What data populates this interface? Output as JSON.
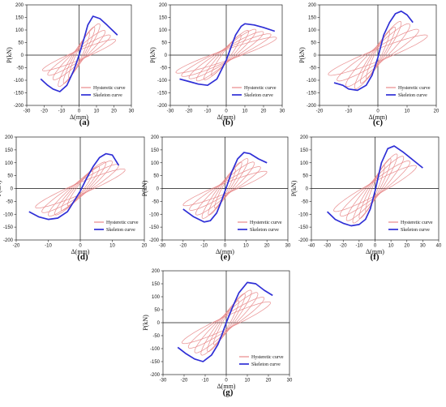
{
  "chart_data": [
    {
      "type": "line",
      "panel_label": "(a)",
      "xlabel": "Δ(mm)",
      "ylabel": "P(kN)",
      "xlim": [
        -30,
        30
      ],
      "ylim": [
        -200,
        200
      ],
      "xticks": [
        -30,
        -20,
        -10,
        0,
        10,
        20,
        30
      ],
      "yticks": [
        -200,
        -150,
        -100,
        -50,
        0,
        50,
        100,
        150,
        200
      ],
      "legend_position": "bottom-right",
      "series": [
        {
          "name": "Hysteretic curve",
          "color": "#e8888a",
          "cycle_amplitudes": [
            6,
            9,
            12,
            15,
            18,
            21
          ],
          "peak_force": [
            100,
            125,
            140,
            110,
            90,
            70
          ]
        },
        {
          "name": "Skeleton curve",
          "color": "#2f2fd6",
          "x": [
            -22,
            -18,
            -15,
            -11,
            -7,
            -3,
            0,
            3,
            5,
            8,
            12,
            16,
            19,
            22
          ],
          "y": [
            -95,
            -120,
            -135,
            -145,
            -120,
            -60,
            0,
            70,
            120,
            155,
            145,
            120,
            100,
            80
          ]
        }
      ]
    },
    {
      "type": "line",
      "panel_label": "(b)",
      "xlabel": "Δ(mm)",
      "ylabel": "P(kN)",
      "xlim": [
        -30,
        30
      ],
      "ylim": [
        -200,
        200
      ],
      "xticks": [
        -30,
        -20,
        -10,
        0,
        10,
        20,
        30
      ],
      "yticks": [
        -200,
        -150,
        -100,
        -50,
        0,
        50,
        100,
        150,
        200
      ],
      "legend_position": "bottom-right",
      "series": [
        {
          "name": "Hysteretic curve",
          "color": "#e8888a",
          "cycle_amplitudes": [
            8,
            12,
            16,
            20,
            24,
            27
          ],
          "peak_force": [
            90,
            110,
            115,
            105,
            95,
            80
          ]
        },
        {
          "name": "Skeleton curve",
          "color": "#2f2fd6",
          "x": [
            -25,
            -20,
            -15,
            -10,
            -5,
            0,
            5,
            8,
            10,
            15,
            20,
            26
          ],
          "y": [
            -95,
            -105,
            -115,
            -120,
            -95,
            -20,
            80,
            115,
            125,
            120,
            110,
            95
          ]
        }
      ]
    },
    {
      "type": "line",
      "panel_label": "(c)",
      "xlabel": "Δ(mm)",
      "ylabel": "P(kN)",
      "xlim": [
        -20,
        20
      ],
      "ylim": [
        -200,
        200
      ],
      "xticks": [
        -20,
        -10,
        0,
        10,
        20
      ],
      "yticks": [
        -200,
        -150,
        -100,
        -50,
        0,
        50,
        100,
        150,
        200
      ],
      "legend_position": "bottom-right",
      "series": [
        {
          "name": "Hysteretic curve",
          "color": "#e8888a",
          "cycle_amplitudes": [
            4,
            6,
            8,
            11,
            14,
            17
          ],
          "peak_force": [
            105,
            125,
            150,
            140,
            115,
            90
          ]
        },
        {
          "name": "Skeleton curve",
          "color": "#2f2fd6",
          "x": [
            -15,
            -12,
            -10,
            -7,
            -4,
            -2,
            0,
            2,
            4,
            6,
            8,
            10,
            12
          ],
          "y": [
            -110,
            -120,
            -135,
            -140,
            -120,
            -80,
            -10,
            80,
            130,
            165,
            175,
            160,
            130
          ]
        }
      ]
    },
    {
      "type": "line",
      "panel_label": "(d)",
      "xlabel": "Δ(mm)",
      "ylabel": "P(kN)",
      "xlim": [
        -20,
        20
      ],
      "ylim": [
        -200,
        200
      ],
      "xticks": [
        -20,
        -10,
        0,
        10,
        20
      ],
      "yticks": [
        -200,
        -150,
        -100,
        -50,
        0,
        50,
        100,
        150,
        200
      ],
      "legend_position": "bottom-right",
      "series": [
        {
          "name": "Hysteretic curve",
          "color": "#e8888a",
          "cycle_amplitudes": [
            4,
            6,
            8,
            10,
            12,
            14
          ],
          "peak_force": [
            75,
            95,
            115,
            120,
            105,
            85
          ]
        },
        {
          "name": "Skeleton curve",
          "color": "#2f2fd6",
          "x": [
            -16,
            -13,
            -10,
            -7,
            -4,
            -2,
            0,
            2,
            4,
            6,
            8,
            10,
            12
          ],
          "y": [
            -90,
            -110,
            -120,
            -115,
            -90,
            -50,
            -10,
            40,
            85,
            120,
            135,
            130,
            90
          ]
        }
      ]
    },
    {
      "type": "line",
      "panel_label": "(e)",
      "xlabel": "Δ(mm)",
      "ylabel": "P(kN)",
      "xlim": [
        -30,
        30
      ],
      "ylim": [
        -200,
        200
      ],
      "xticks": [
        -30,
        -20,
        -10,
        0,
        10,
        20,
        30
      ],
      "yticks": [
        -200,
        -150,
        -100,
        -50,
        0,
        50,
        100,
        150,
        200
      ],
      "legend_position": "bottom-right",
      "series": [
        {
          "name": "Hysteretic curve",
          "color": "#e8888a",
          "cycle_amplitudes": [
            5,
            8,
            11,
            14,
            17,
            20
          ],
          "peak_force": [
            85,
            115,
            130,
            115,
            95,
            75
          ]
        },
        {
          "name": "Skeleton curve",
          "color": "#2f2fd6",
          "x": [
            -20,
            -15,
            -10,
            -7,
            -4,
            -2,
            0,
            3,
            6,
            9,
            12,
            16,
            20
          ],
          "y": [
            -80,
            -110,
            -130,
            -125,
            -95,
            -55,
            -10,
            60,
            115,
            140,
            135,
            115,
            100
          ]
        }
      ]
    },
    {
      "type": "line",
      "panel_label": "(f)",
      "xlabel": "Δ(mm)",
      "ylabel": "P(kN)",
      "xlim": [
        -40,
        40
      ],
      "ylim": [
        -200,
        200
      ],
      "xticks": [
        -40,
        -30,
        -20,
        -10,
        0,
        10,
        20,
        30,
        40
      ],
      "yticks": [
        -200,
        -150,
        -100,
        -50,
        0,
        50,
        100,
        150,
        200
      ],
      "legend_position": "bottom-right",
      "series": [
        {
          "name": "Hysteretic curve",
          "color": "#e8888a",
          "cycle_amplitudes": [
            6,
            10,
            14,
            18,
            22,
            26
          ],
          "peak_force": [
            100,
            130,
            150,
            140,
            120,
            100
          ]
        },
        {
          "name": "Skeleton curve",
          "color": "#2f2fd6",
          "x": [
            -30,
            -25,
            -20,
            -15,
            -10,
            -6,
            -3,
            0,
            4,
            8,
            12,
            18,
            24,
            30
          ],
          "y": [
            -90,
            -120,
            -135,
            -145,
            -140,
            -120,
            -80,
            -10,
            100,
            155,
            165,
            140,
            110,
            80
          ]
        }
      ]
    },
    {
      "type": "line",
      "panel_label": "(g)",
      "xlabel": "Δ(mm)",
      "ylabel": "P(kN)",
      "xlim": [
        -30,
        30
      ],
      "ylim": [
        -200,
        200
      ],
      "xticks": [
        -30,
        -20,
        -10,
        0,
        10,
        20,
        30
      ],
      "yticks": [
        -200,
        -150,
        -100,
        -50,
        0,
        50,
        100,
        150,
        200
      ],
      "legend_position": "bottom-right",
      "series": [
        {
          "name": "Hysteretic curve",
          "color": "#e8888a",
          "cycle_amplitudes": [
            6,
            9,
            12,
            15,
            18,
            21
          ],
          "peak_force": [
            95,
            125,
            140,
            130,
            110,
            90
          ]
        },
        {
          "name": "Skeleton curve",
          "color": "#2f2fd6",
          "x": [
            -23,
            -19,
            -15,
            -11,
            -7,
            -4,
            -2,
            0,
            3,
            6,
            10,
            14,
            18,
            22
          ],
          "y": [
            -95,
            -120,
            -140,
            -150,
            -125,
            -85,
            -45,
            0,
            60,
            115,
            155,
            150,
            125,
            105
          ]
        }
      ]
    }
  ]
}
